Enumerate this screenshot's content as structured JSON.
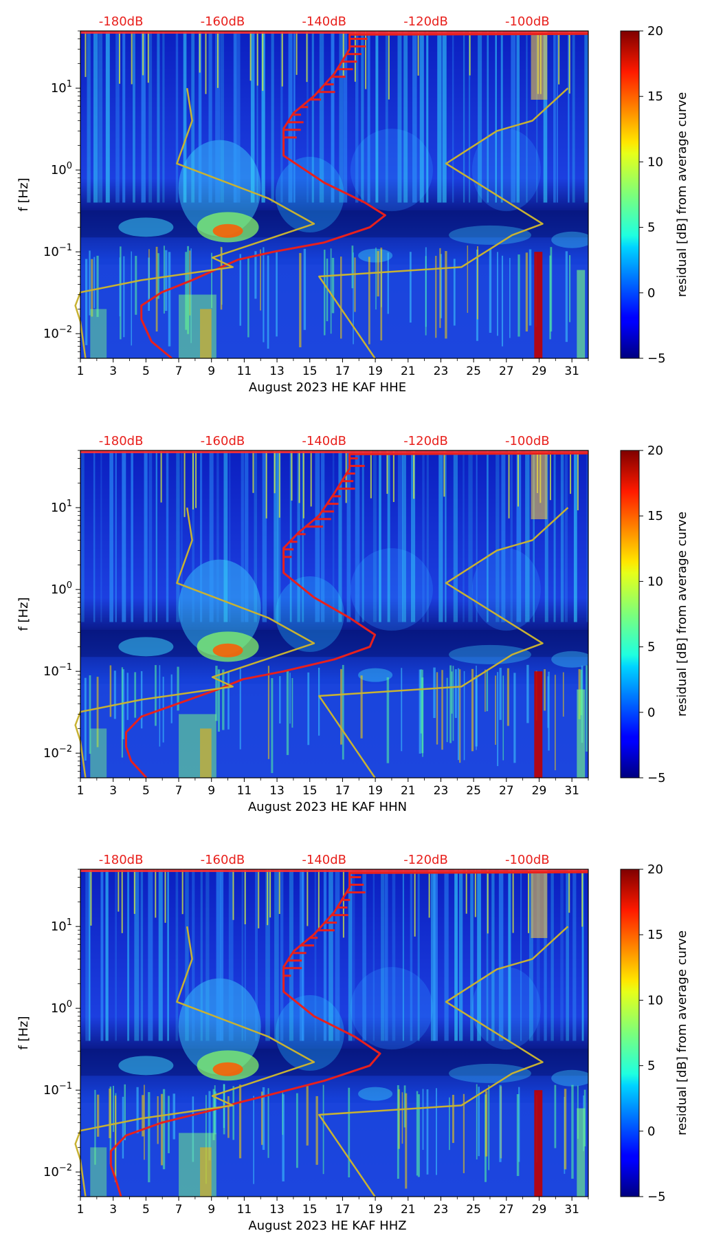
{
  "figure": {
    "panels": [
      {
        "channel": "HHE",
        "xlabel": "August 2023 HE KAF  HHE"
      },
      {
        "channel": "HHN",
        "xlabel": "August 2023 HE KAF  HHN"
      },
      {
        "channel": "HHZ",
        "xlabel": "August 2023 HE KAF  HHZ"
      }
    ]
  },
  "chart_data": [
    {
      "type": "heatmap",
      "title": "",
      "xlabel": "August 2023 HE KAF  HHE",
      "ylabel": "f [Hz]",
      "x_ticks": [
        "1",
        "3",
        "5",
        "7",
        "9",
        "11",
        "13",
        "15",
        "17",
        "19",
        "21",
        "23",
        "25",
        "27",
        "29",
        "31"
      ],
      "x_range": [
        1,
        32
      ],
      "y_scale": "log",
      "y_range": [
        0.005,
        50
      ],
      "y_tick_labels": [
        "10^-2",
        "10^-1",
        "10^0",
        "10^1"
      ],
      "top_axis_labels": [
        "-180dB",
        "-160dB",
        "-140dB",
        "-120dB",
        "-100dB"
      ],
      "top_axis_range": [
        -188,
        -88
      ],
      "colorbar": {
        "label": "residual [dB] from average curve",
        "range": [
          -5,
          20
        ],
        "ticks": [
          "−5",
          "0",
          "5",
          "10",
          "15",
          "20"
        ]
      },
      "series": [
        {
          "name": "average PSD curve",
          "color": "#e8201c",
          "units": "dB",
          "points": [
            [
              -170,
              0.005
            ],
            [
              -174,
              0.008
            ],
            [
              -176,
              0.015
            ],
            [
              -176,
              0.022
            ],
            [
              -172,
              0.032
            ],
            [
              -166,
              0.045
            ],
            [
              -161,
              0.062
            ],
            [
              -157,
              0.08
            ],
            [
              -150,
              0.1
            ],
            [
              -140,
              0.13
            ],
            [
              -131,
              0.2
            ],
            [
              -128,
              0.28
            ],
            [
              -132,
              0.4
            ],
            [
              -140,
              0.7
            ],
            [
              -148,
              1.5
            ],
            [
              -148,
              2.2
            ],
            [
              -148,
              3.2
            ],
            [
              -146,
              5
            ],
            [
              -142,
              8
            ],
            [
              -138,
              15
            ],
            [
              -135,
              30
            ],
            [
              -135,
              45
            ],
            [
              -88,
              46
            ]
          ]
        },
        {
          "name": "noise model low",
          "color": "#c8b232",
          "units": "dB",
          "points": [
            [
              -187,
              0.005
            ],
            [
              -188,
              0.014
            ],
            [
              -189,
              0.022
            ],
            [
              -188,
              0.032
            ],
            [
              -176,
              0.045
            ],
            [
              -158,
              0.065
            ],
            [
              -162,
              0.085
            ],
            [
              -142,
              0.22
            ],
            [
              -151,
              0.45
            ],
            [
              -169,
              1.2
            ],
            [
              -166,
              4
            ],
            [
              -167,
              10
            ]
          ]
        },
        {
          "name": "noise model high",
          "color": "#c8b232",
          "units": "dB",
          "points": [
            [
              -130,
              0.005
            ],
            [
              -141,
              0.05
            ],
            [
              -113,
              0.065
            ],
            [
              -103,
              0.16
            ],
            [
              -97,
              0.22
            ],
            [
              -116,
              1.2
            ],
            [
              -106,
              3
            ],
            [
              -99,
              4
            ],
            [
              -92,
              10
            ]
          ]
        }
      ]
    },
    {
      "type": "heatmap",
      "title": "",
      "xlabel": "August 2023 HE KAF  HHN",
      "ylabel": "f [Hz]",
      "x_ticks": [
        "1",
        "3",
        "5",
        "7",
        "9",
        "11",
        "13",
        "15",
        "17",
        "19",
        "21",
        "23",
        "25",
        "27",
        "29",
        "31"
      ],
      "x_range": [
        1,
        32
      ],
      "y_scale": "log",
      "y_range": [
        0.005,
        50
      ],
      "y_tick_labels": [
        "10^-2",
        "10^-1",
        "10^0",
        "10^1"
      ],
      "top_axis_labels": [
        "-180dB",
        "-160dB",
        "-140dB",
        "-120dB",
        "-100dB"
      ],
      "top_axis_range": [
        -188,
        -88
      ],
      "colorbar": {
        "label": "residual [dB] from average curve",
        "range": [
          -5,
          20
        ],
        "ticks": [
          "−5",
          "0",
          "5",
          "10",
          "15",
          "20"
        ]
      },
      "series": [
        {
          "name": "average PSD curve",
          "color": "#e8201c",
          "units": "dB",
          "points": [
            [
              -175,
              0.005
            ],
            [
              -178,
              0.008
            ],
            [
              -179,
              0.012
            ],
            [
              -179,
              0.018
            ],
            [
              -176,
              0.028
            ],
            [
              -168,
              0.042
            ],
            [
              -161,
              0.06
            ],
            [
              -156,
              0.08
            ],
            [
              -148,
              0.1
            ],
            [
              -138,
              0.14
            ],
            [
              -131,
              0.2
            ],
            [
              -130,
              0.28
            ],
            [
              -135,
              0.45
            ],
            [
              -142,
              0.8
            ],
            [
              -148,
              1.6
            ],
            [
              -148,
              2.2
            ],
            [
              -148,
              3.2
            ],
            [
              -145,
              5
            ],
            [
              -141,
              8
            ],
            [
              -138,
              15
            ],
            [
              -135,
              30
            ],
            [
              -135,
              45
            ],
            [
              -88,
              46
            ]
          ]
        },
        {
          "name": "noise model low",
          "color": "#c8b232",
          "units": "dB",
          "points": [
            [
              -187,
              0.005
            ],
            [
              -188,
              0.014
            ],
            [
              -189,
              0.022
            ],
            [
              -188,
              0.032
            ],
            [
              -176,
              0.045
            ],
            [
              -158,
              0.065
            ],
            [
              -162,
              0.085
            ],
            [
              -142,
              0.22
            ],
            [
              -151,
              0.45
            ],
            [
              -169,
              1.2
            ],
            [
              -166,
              4
            ],
            [
              -167,
              10
            ]
          ]
        },
        {
          "name": "noise model high",
          "color": "#c8b232",
          "units": "dB",
          "points": [
            [
              -130,
              0.005
            ],
            [
              -141,
              0.05
            ],
            [
              -113,
              0.065
            ],
            [
              -103,
              0.16
            ],
            [
              -97,
              0.22
            ],
            [
              -116,
              1.2
            ],
            [
              -106,
              3
            ],
            [
              -99,
              4
            ],
            [
              -92,
              10
            ]
          ]
        }
      ]
    },
    {
      "type": "heatmap",
      "title": "",
      "xlabel": "August 2023 HE KAF  HHZ",
      "ylabel": "f [Hz]",
      "x_ticks": [
        "1",
        "3",
        "5",
        "7",
        "9",
        "11",
        "13",
        "15",
        "17",
        "19",
        "21",
        "23",
        "25",
        "27",
        "29",
        "31"
      ],
      "x_range": [
        1,
        32
      ],
      "y_scale": "log",
      "y_range": [
        0.005,
        50
      ],
      "y_tick_labels": [
        "10^-2",
        "10^-1",
        "10^0",
        "10^1"
      ],
      "top_axis_labels": [
        "-180dB",
        "-160dB",
        "-140dB",
        "-120dB",
        "-100dB"
      ],
      "top_axis_range": [
        -188,
        -88
      ],
      "colorbar": {
        "label": "residual [dB] from average curve",
        "range": [
          -5,
          20
        ],
        "ticks": [
          "−5",
          "0",
          "5",
          "10",
          "15",
          "20"
        ]
      },
      "series": [
        {
          "name": "average PSD curve",
          "color": "#e8201c",
          "units": "dB",
          "points": [
            [
              -180,
              0.005
            ],
            [
              -181,
              0.008
            ],
            [
              -182,
              0.012
            ],
            [
              -182,
              0.018
            ],
            [
              -179,
              0.028
            ],
            [
              -172,
              0.04
            ],
            [
              -163,
              0.055
            ],
            [
              -157,
              0.07
            ],
            [
              -150,
              0.09
            ],
            [
              -140,
              0.13
            ],
            [
              -131,
              0.2
            ],
            [
              -129,
              0.28
            ],
            [
              -134,
              0.45
            ],
            [
              -142,
              0.8
            ],
            [
              -148,
              1.6
            ],
            [
              -148,
              2.2
            ],
            [
              -148,
              3.2
            ],
            [
              -146,
              5
            ],
            [
              -142,
              8
            ],
            [
              -138,
              15
            ],
            [
              -135,
              30
            ],
            [
              -135,
              45
            ],
            [
              -88,
              46
            ]
          ]
        },
        {
          "name": "noise model low",
          "color": "#c8b232",
          "units": "dB",
          "points": [
            [
              -187,
              0.005
            ],
            [
              -188,
              0.014
            ],
            [
              -189,
              0.022
            ],
            [
              -188,
              0.032
            ],
            [
              -176,
              0.045
            ],
            [
              -158,
              0.065
            ],
            [
              -162,
              0.085
            ],
            [
              -142,
              0.22
            ],
            [
              -151,
              0.45
            ],
            [
              -169,
              1.2
            ],
            [
              -166,
              4
            ],
            [
              -167,
              10
            ]
          ]
        },
        {
          "name": "noise model high",
          "color": "#c8b232",
          "units": "dB",
          "points": [
            [
              -130,
              0.005
            ],
            [
              -141,
              0.05
            ],
            [
              -113,
              0.065
            ],
            [
              -103,
              0.16
            ],
            [
              -97,
              0.22
            ],
            [
              -116,
              1.2
            ],
            [
              -106,
              3
            ],
            [
              -99,
              4
            ],
            [
              -92,
              10
            ]
          ]
        }
      ]
    }
  ]
}
